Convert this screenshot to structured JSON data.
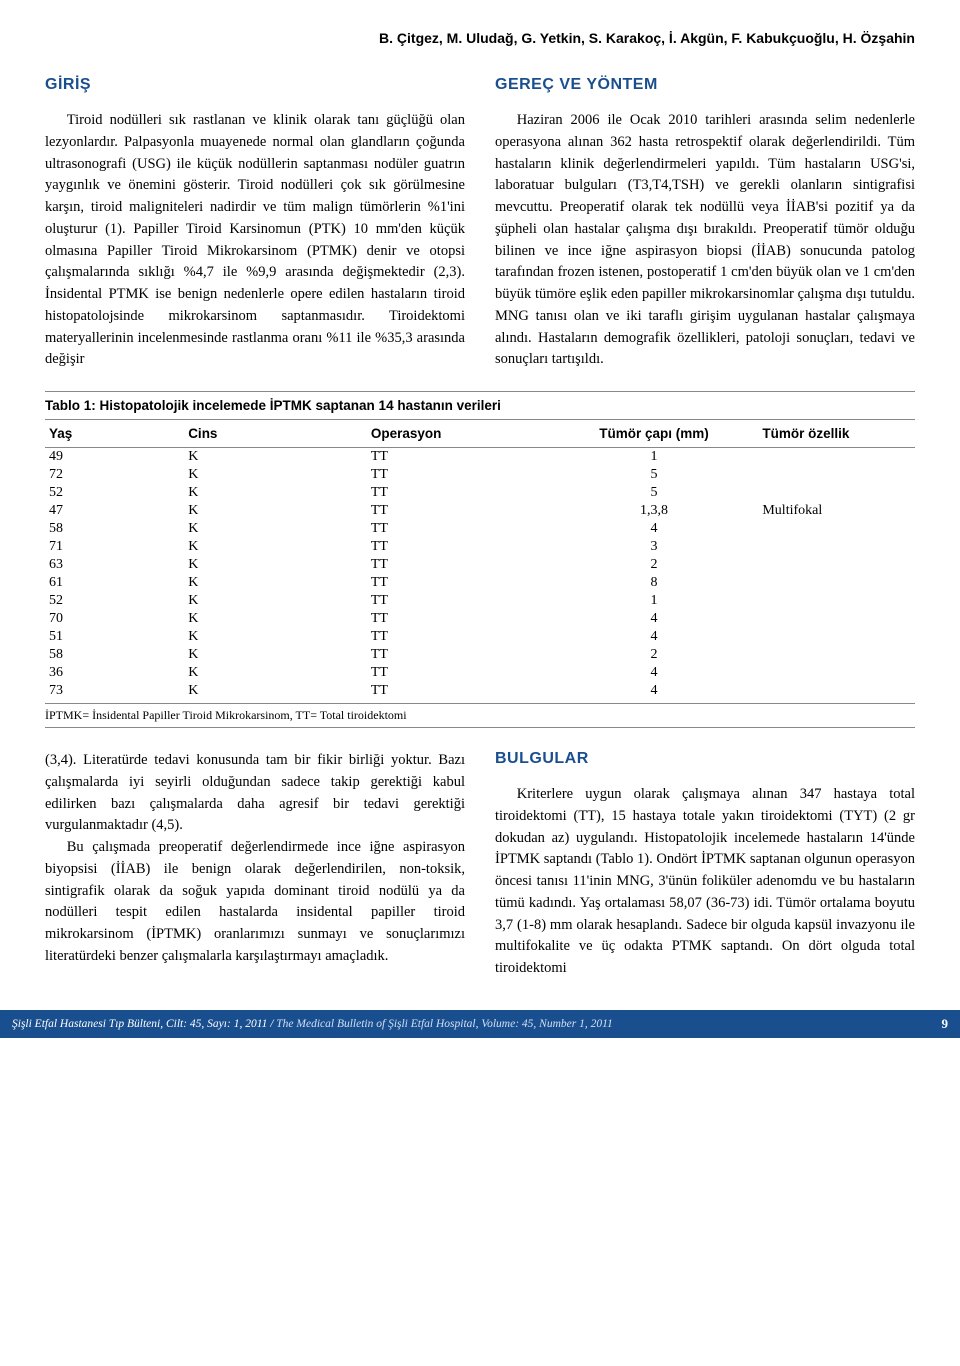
{
  "authors": "B. Çitgez, M. Uludağ, G. Yetkin, S. Karakoç, İ. Akgün, F. Kabukçuoğlu, H. Özşahin",
  "left": {
    "heading": "GİRİŞ",
    "p1": "Tiroid nodülleri sık rastlanan ve klinik olarak tanı güçlüğü olan lezyonlardır. Palpasyonla muayenede normal olan glandların çoğunda ultrasonografi (USG) ile küçük nodüllerin saptanması nodüler guatrın yaygınlık ve önemini gösterir. Tiroid nodülleri çok sık görülmesine karşın, tiroid maligniteleri nadirdir ve tüm malign tümörlerin %1'ini oluşturur (1). Papiller Tiroid Karsinomun (PTK) 10 mm'den küçük olmasına Papiller Tiroid Mikrokarsinom (PTMK) denir ve otopsi çalışmalarında sıklığı %4,7 ile %9,9 arasında değişmektedir (2,3). İnsidental PTMK ise benign nedenlerle opere edilen hastaların tiroid histopatolojsinde mikrokarsinom saptanmasıdır. Tiroidektomi materyallerinin incelenmesinde rastlanma oranı %11 ile %35,3 arasında değişir"
  },
  "right": {
    "heading": "GEREÇ VE YÖNTEM",
    "p1": "Haziran 2006 ile Ocak 2010 tarihleri arasında selim nedenlerle operasyona alınan 362 hasta retrospektif olarak değerlendirildi. Tüm hastaların klinik değerlendirmeleri yapıldı. Tüm hastaların USG'si, laboratuar bulguları (T3,T4,TSH) ve gerekli olanların sintigrafisi mevcuttu. Preoperatif olarak tek nodüllü veya İİAB'si pozitif ya da şüpheli olan hastalar çalışma dışı bırakıldı. Preoperatif tümör olduğu bilinen ve ince iğne aspirasyon biopsi (İİAB) sonucunda patolog tarafından frozen istenen, postoperatif 1 cm'den büyük olan ve 1 cm'den büyük tümöre eşlik eden papiller mikrokarsinomlar çalışma dışı tutuldu. MNG tanısı olan ve iki taraflı girişim uygulanan hastalar çalışmaya alındı. Hastaların demografik özellikleri, patoloji sonuçları, tedavi ve sonuçları tartışıldı."
  },
  "table": {
    "caption": "Tablo 1: Histopatolojik incelemede İPTMK saptanan 14 hastanın verileri",
    "columns": [
      "Yaş",
      "Cins",
      "Operasyon",
      "Tümör çapı (mm)",
      "Tümör özellik"
    ],
    "rows": [
      [
        "49",
        "K",
        "TT",
        "1",
        ""
      ],
      [
        "72",
        "K",
        "TT",
        "5",
        ""
      ],
      [
        "52",
        "K",
        "TT",
        "5",
        ""
      ],
      [
        "47",
        "K",
        "TT",
        "1,3,8",
        "Multifokal"
      ],
      [
        "58",
        "K",
        "TT",
        "4",
        ""
      ],
      [
        "71",
        "K",
        "TT",
        "3",
        ""
      ],
      [
        "63",
        "K",
        "TT",
        "2",
        ""
      ],
      [
        "61",
        "K",
        "TT",
        "8",
        ""
      ],
      [
        "52",
        "K",
        "TT",
        "1",
        ""
      ],
      [
        "70",
        "K",
        "TT",
        "4",
        ""
      ],
      [
        "51",
        "K",
        "TT",
        "4",
        ""
      ],
      [
        "58",
        "K",
        "TT",
        "2",
        ""
      ],
      [
        "36",
        "K",
        "TT",
        "4",
        ""
      ],
      [
        "73",
        "K",
        "TT",
        "4",
        ""
      ]
    ],
    "footnote": "İPTMK= İnsidental Papiller Tiroid Mikrokarsinom, TT= Total tiroidektomi",
    "col_widths": [
      "16%",
      "21%",
      "21%",
      "24%",
      "18%"
    ],
    "col_aligns": [
      "left",
      "left",
      "left",
      "center",
      "left"
    ]
  },
  "left2": {
    "p1": "(3,4). Literatürde tedavi konusunda tam bir fikir birliği yoktur. Bazı çalışmalarda iyi seyirli olduğundan sadece takip gerektiği kabul edilirken bazı çalışmalarda daha agresif bir tedavi gerektiği vurgulanmaktadır (4,5).",
    "p2": "Bu çalışmada preoperatif değerlendirmede ince iğne aspirasyon biyopsisi (İİAB) ile benign olarak değerlendirilen, non-toksik, sintigrafik olarak da soğuk yapıda dominant tiroid nodülü ya da nodülleri tespit edilen hastalarda insidental papiller tiroid mikrokarsinom (İPTMK) oranlarımızı sunmayı ve sonuçlarımızı literatürdeki benzer çalışmalarla karşılaştırmayı amaçladık."
  },
  "right2": {
    "heading": "BULGULAR",
    "p1": "Kriterlere uygun olarak çalışmaya alınan 347 hastaya total tiroidektomi (TT), 15 hastaya totale yakın tiroidektomi (TYT) (2 gr dokudan az) uygulandı. Histopatolojik incelemede hastaların 14'ünde İPTMK saptandı (Tablo 1). Ondört İPTMK saptanan olgunun operasyon öncesi tanısı 11'inin MNG, 3'ünün foliküler adenomdu ve bu hastaların tümü kadındı. Yaş ortalaması 58,07 (36-73) idi. Tümör ortalama boyutu 3,7 (1-8) mm olarak hesaplandı. Sadece bir olguda kapsül invazyonu ile multifokalite ve üç odakta PTMK saptandı. On dört olguda total tiroidektomi"
  },
  "footer": {
    "left_tr": "Şişli Etfal Hastanesi Tıp Bülteni, Cilt: 45, Sayı: 1, 2011 / ",
    "left_en": "The Medical Bulletin of Şişli Etfal Hospital, Volume: 45, Number 1, 2011",
    "page": "9",
    "bg": "#1a4f8f"
  }
}
